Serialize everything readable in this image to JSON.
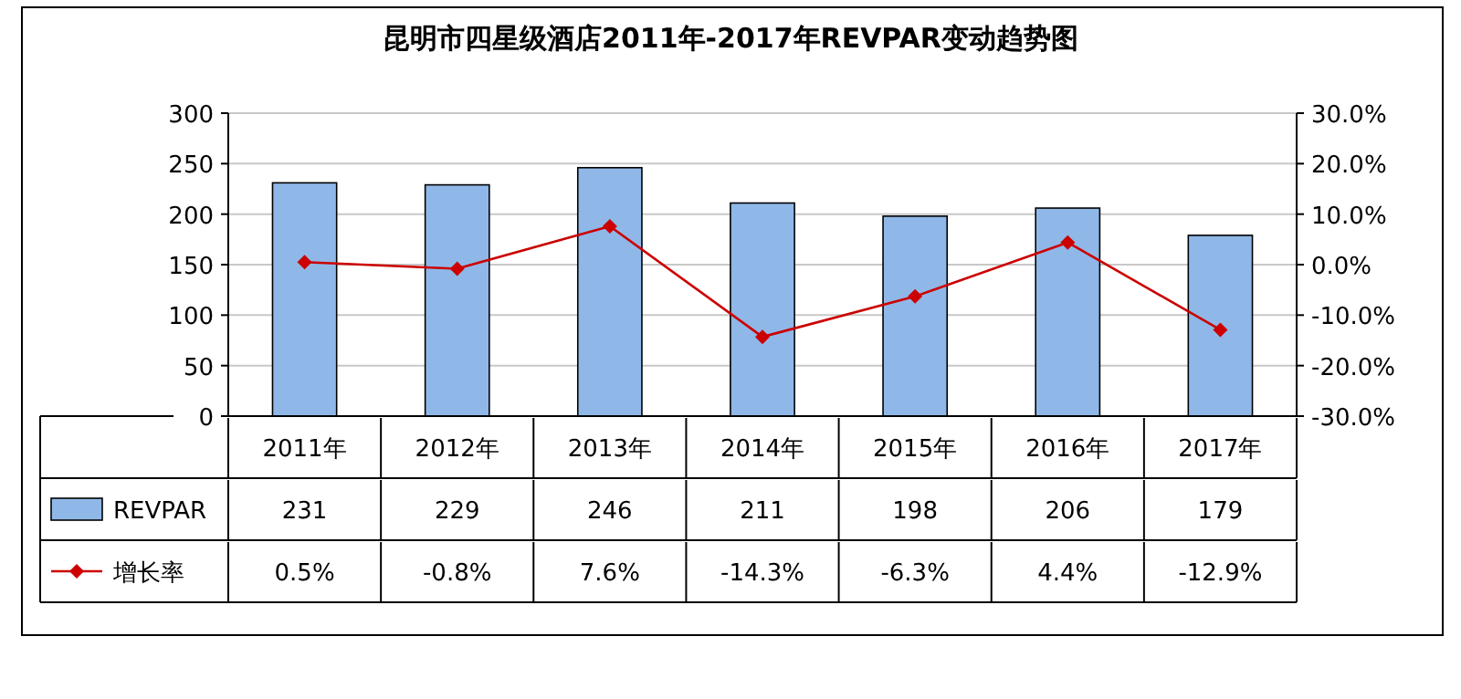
{
  "chart_data": {
    "type": "bar",
    "title": "昆明市四星级酒店2011年-2017年REVPAR变动趋势图",
    "categories": [
      "2011年",
      "2012年",
      "2013年",
      "2014年",
      "2015年",
      "2016年",
      "2017年"
    ],
    "series": [
      {
        "name": "REVPAR",
        "color": "#8fb8e8",
        "values": [
          231,
          229,
          246,
          211,
          198,
          206,
          179
        ],
        "value_labels": [
          "231",
          "229",
          "246",
          "211",
          "198",
          "206",
          "179"
        ]
      },
      {
        "name": "增长率",
        "type": "line",
        "axis": "y2",
        "color": "#cc0000",
        "values": [
          0.5,
          -0.8,
          7.6,
          -14.3,
          -6.3,
          4.4,
          -12.9
        ],
        "value_labels": [
          "0.5%",
          "-0.8%",
          "7.6%",
          "-14.3%",
          "-6.3%",
          "4.4%",
          "-12.9%"
        ]
      }
    ],
    "ylim": [
      0,
      300
    ],
    "yticks": [
      0,
      50,
      100,
      150,
      200,
      250,
      300
    ],
    "y2lim": [
      -30,
      30
    ],
    "y2ticks": [
      {
        "value": -30,
        "label": "-30.0%"
      },
      {
        "value": -20,
        "label": "-20.0%"
      },
      {
        "value": -10,
        "label": "-10.0%"
      },
      {
        "value": 0,
        "label": "0.0%"
      },
      {
        "value": 10,
        "label": "10.0%"
      },
      {
        "value": 20,
        "label": "20.0%"
      },
      {
        "value": 30,
        "label": "30.0%"
      }
    ],
    "grid": "y",
    "legend": "bottom left",
    "marker": "diamond",
    "line_style": "solid"
  }
}
